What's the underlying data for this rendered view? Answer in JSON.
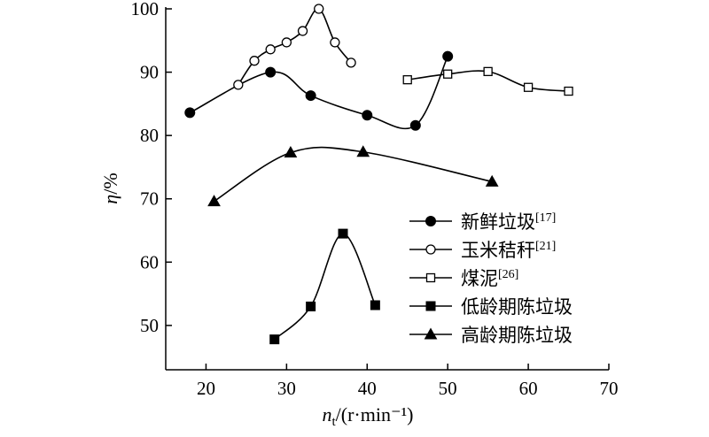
{
  "chart_data": {
    "type": "line",
    "xlabel": {
      "main": "n",
      "sub": "t",
      "units": "/(r·min⁻¹)"
    },
    "ylabel": {
      "main": "η",
      "units": "/%"
    },
    "xlim": [
      15,
      70
    ],
    "ylim": [
      43,
      100
    ],
    "xticks": [
      "20",
      "30",
      "40",
      "50",
      "60",
      "70"
    ],
    "yticks": [
      "50",
      "60",
      "70",
      "80",
      "90",
      "100"
    ],
    "legend_position": "lower-right",
    "series": [
      {
        "name": "新鲜垃圾",
        "ref": "[17]",
        "marker": "filled-circle",
        "x": [
          18,
          28,
          33,
          40,
          46,
          50
        ],
        "y": [
          83.6,
          90,
          86.3,
          83.2,
          81.6,
          92.5
        ]
      },
      {
        "name": "玉米秸秆",
        "ref": "[21]",
        "marker": "open-circle",
        "x": [
          24,
          26,
          28,
          30,
          32,
          34,
          36,
          38
        ],
        "y": [
          88,
          91.8,
          93.6,
          94.7,
          96.5,
          100,
          94.7,
          91.5
        ]
      },
      {
        "name": "煤泥",
        "ref": "[26]",
        "marker": "open-square",
        "x": [
          45,
          50,
          55,
          60,
          65
        ],
        "y": [
          88.8,
          89.7,
          90.1,
          87.6,
          87
        ]
      },
      {
        "name": "低龄期陈垃圾",
        "ref": "",
        "marker": "filled-square",
        "x": [
          28.5,
          33,
          37,
          41
        ],
        "y": [
          47.8,
          53,
          64.5,
          53.2
        ]
      },
      {
        "name": "高龄期陈垃圾",
        "ref": "",
        "marker": "filled-triangle",
        "x": [
          21,
          30.5,
          39.5,
          55.5
        ],
        "y": [
          69.6,
          77.3,
          77.4,
          72.7
        ]
      }
    ]
  }
}
